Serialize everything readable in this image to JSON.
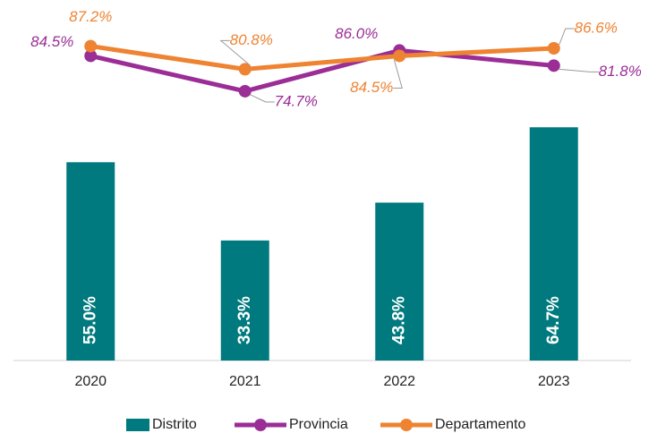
{
  "chart_data": {
    "type": "bar",
    "categories": [
      "2020",
      "2021",
      "2022",
      "2023"
    ],
    "ylim": [
      0,
      100
    ],
    "series": [
      {
        "name": "Distrito",
        "type": "bar",
        "color": "#007a7e",
        "values": [
          55.0,
          33.3,
          43.8,
          64.7
        ],
        "value_labels": [
          "55.0%",
          "33.3%",
          "43.8%",
          "64.7%"
        ]
      },
      {
        "name": "Provincia",
        "type": "line",
        "color": "#9b2d96",
        "values": [
          84.5,
          74.7,
          86.0,
          81.8
        ],
        "value_labels": [
          "84.5%",
          "74.7%",
          "86.0%",
          "81.8%"
        ]
      },
      {
        "name": "Departamento",
        "type": "line",
        "color": "#ee8332",
        "values": [
          87.2,
          80.8,
          84.5,
          86.6
        ],
        "value_labels": [
          "87.2%",
          "80.8%",
          "84.5%",
          "86.6%"
        ]
      }
    ]
  }
}
